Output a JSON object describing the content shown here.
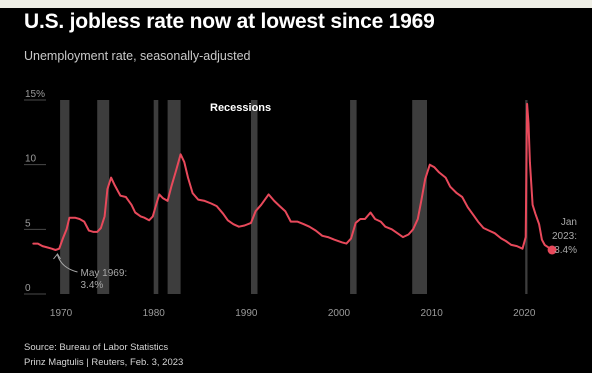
{
  "header": {
    "title": "U.S. jobless rate now at lowest since 1969",
    "subtitle": "Unemployment rate, seasonally-adjusted"
  },
  "footer": {
    "source": "Source: Bureau of Labor Statistics",
    "credit": "Prinz Magtulis | Reuters, Feb. 3, 2023"
  },
  "colors": {
    "background": "#000000",
    "line": "#e8495b",
    "recession": "#3d3d3d",
    "gridline": "#4a4a4a",
    "text": "#9b9b9b"
  },
  "chart_data": {
    "type": "line",
    "title": "U.S. jobless rate now at lowest since 1969",
    "subtitle": "Unemployment rate, seasonally-adjusted",
    "xlabel": "",
    "ylabel": "",
    "xlim": [
      1966,
      2024.5
    ],
    "ylim": [
      0,
      15
    ],
    "x_ticks": [
      1970,
      1980,
      1990,
      2000,
      2010,
      2020
    ],
    "y_ticks": [
      {
        "value": 0,
        "label": "0"
      },
      {
        "value": 5,
        "label": "5"
      },
      {
        "value": 10,
        "label": "10"
      },
      {
        "value": 15,
        "label": "15%"
      }
    ],
    "grid": "horizontal",
    "recession_label": "Recessions",
    "recessions": [
      [
        1969.9,
        1970.9
      ],
      [
        1973.9,
        1975.2
      ],
      [
        1980.0,
        1980.5
      ],
      [
        1981.5,
        1982.9
      ],
      [
        1990.5,
        1991.2
      ],
      [
        2001.2,
        2001.9
      ],
      [
        2007.9,
        2009.5
      ],
      [
        2020.1,
        2020.35
      ]
    ],
    "series": [
      {
        "name": "",
        "points": [
          [
            1967.0,
            3.9
          ],
          [
            1967.5,
            3.9
          ],
          [
            1968.0,
            3.7
          ],
          [
            1968.5,
            3.6
          ],
          [
            1969.0,
            3.5
          ],
          [
            1969.4,
            3.4
          ],
          [
            1969.8,
            3.5
          ],
          [
            1970.2,
            4.3
          ],
          [
            1970.6,
            5.0
          ],
          [
            1970.9,
            5.9
          ],
          [
            1971.5,
            5.9
          ],
          [
            1972.0,
            5.8
          ],
          [
            1972.5,
            5.6
          ],
          [
            1973.0,
            4.9
          ],
          [
            1973.5,
            4.8
          ],
          [
            1973.9,
            4.8
          ],
          [
            1974.3,
            5.1
          ],
          [
            1974.7,
            6.0
          ],
          [
            1975.0,
            8.1
          ],
          [
            1975.4,
            9.0
          ],
          [
            1975.8,
            8.4
          ],
          [
            1976.4,
            7.6
          ],
          [
            1977.0,
            7.5
          ],
          [
            1977.6,
            6.9
          ],
          [
            1978.0,
            6.3
          ],
          [
            1978.6,
            6.0
          ],
          [
            1979.0,
            5.9
          ],
          [
            1979.5,
            5.7
          ],
          [
            1979.9,
            6.0
          ],
          [
            1980.3,
            7.0
          ],
          [
            1980.6,
            7.7
          ],
          [
            1981.0,
            7.4
          ],
          [
            1981.5,
            7.2
          ],
          [
            1981.9,
            8.3
          ],
          [
            1982.4,
            9.5
          ],
          [
            1982.9,
            10.8
          ],
          [
            1983.3,
            10.2
          ],
          [
            1983.7,
            9.0
          ],
          [
            1984.2,
            7.8
          ],
          [
            1984.8,
            7.3
          ],
          [
            1985.5,
            7.2
          ],
          [
            1986.2,
            7.0
          ],
          [
            1986.8,
            6.8
          ],
          [
            1987.5,
            6.2
          ],
          [
            1988.0,
            5.7
          ],
          [
            1988.6,
            5.4
          ],
          [
            1989.2,
            5.2
          ],
          [
            1989.8,
            5.3
          ],
          [
            1990.5,
            5.5
          ],
          [
            1991.0,
            6.4
          ],
          [
            1991.6,
            6.9
          ],
          [
            1992.4,
            7.7
          ],
          [
            1993.0,
            7.2
          ],
          [
            1993.6,
            6.8
          ],
          [
            1994.2,
            6.4
          ],
          [
            1994.8,
            5.6
          ],
          [
            1995.5,
            5.6
          ],
          [
            1996.2,
            5.4
          ],
          [
            1996.8,
            5.2
          ],
          [
            1997.5,
            4.9
          ],
          [
            1998.2,
            4.5
          ],
          [
            1998.8,
            4.4
          ],
          [
            1999.5,
            4.2
          ],
          [
            2000.3,
            4.0
          ],
          [
            2000.8,
            3.9
          ],
          [
            2001.3,
            4.3
          ],
          [
            2001.8,
            5.5
          ],
          [
            2002.3,
            5.8
          ],
          [
            2002.8,
            5.8
          ],
          [
            2003.4,
            6.3
          ],
          [
            2003.9,
            5.8
          ],
          [
            2004.5,
            5.6
          ],
          [
            2005.0,
            5.2
          ],
          [
            2005.7,
            5.0
          ],
          [
            2006.3,
            4.7
          ],
          [
            2006.9,
            4.4
          ],
          [
            2007.5,
            4.6
          ],
          [
            2008.0,
            5.0
          ],
          [
            2008.5,
            5.8
          ],
          [
            2008.9,
            7.3
          ],
          [
            2009.3,
            8.9
          ],
          [
            2009.8,
            10.0
          ],
          [
            2010.3,
            9.8
          ],
          [
            2010.8,
            9.4
          ],
          [
            2011.5,
            9.0
          ],
          [
            2012.0,
            8.3
          ],
          [
            2012.7,
            7.8
          ],
          [
            2013.3,
            7.5
          ],
          [
            2013.9,
            6.7
          ],
          [
            2014.5,
            6.1
          ],
          [
            2015.0,
            5.6
          ],
          [
            2015.6,
            5.1
          ],
          [
            2016.2,
            4.9
          ],
          [
            2016.8,
            4.7
          ],
          [
            2017.5,
            4.3
          ],
          [
            2018.0,
            4.1
          ],
          [
            2018.6,
            3.8
          ],
          [
            2019.2,
            3.7
          ],
          [
            2019.8,
            3.5
          ],
          [
            2020.15,
            4.4
          ],
          [
            2020.3,
            14.7
          ],
          [
            2020.45,
            13.2
          ],
          [
            2020.6,
            10.2
          ],
          [
            2020.9,
            6.9
          ],
          [
            2021.2,
            6.2
          ],
          [
            2021.6,
            5.4
          ],
          [
            2021.9,
            4.2
          ],
          [
            2022.2,
            3.8
          ],
          [
            2022.6,
            3.6
          ],
          [
            2022.9,
            3.5
          ],
          [
            2023.0,
            3.4
          ]
        ]
      }
    ],
    "annotations": [
      {
        "x": 1969.4,
        "y": 3.4,
        "lines": [
          "May 1969:",
          "3.4%"
        ]
      },
      {
        "x": 2023.0,
        "y": 3.4,
        "lines": [
          "Jan",
          "2023:",
          "3.4%"
        ]
      }
    ]
  }
}
